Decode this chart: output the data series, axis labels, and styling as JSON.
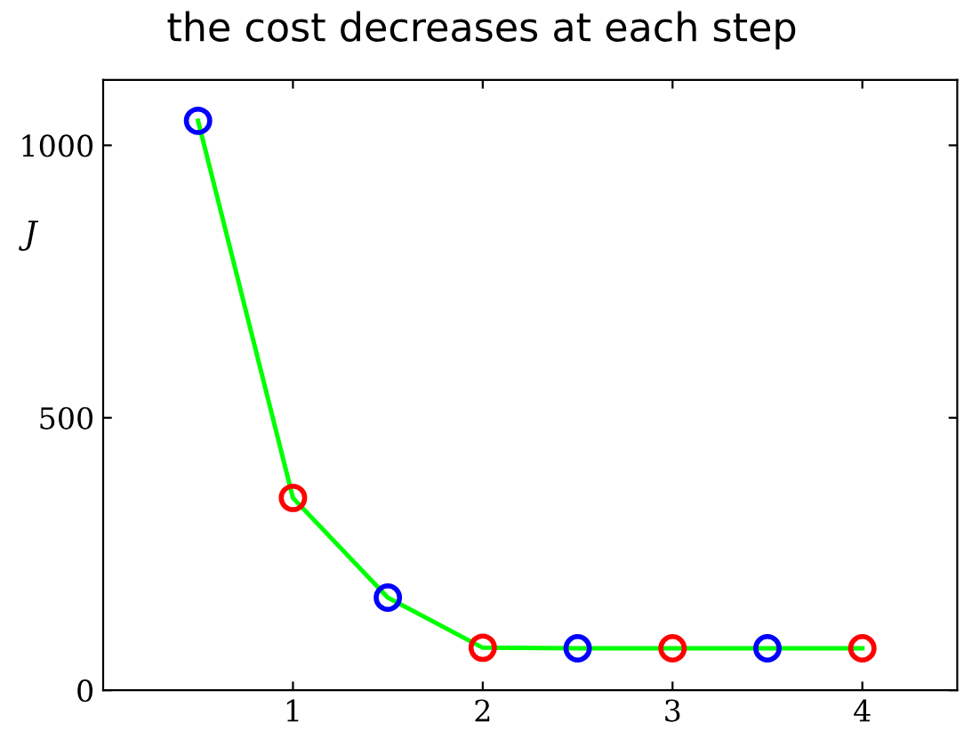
{
  "chart_data": {
    "type": "line",
    "title": "the cost decreases at each step",
    "ylabel": "J",
    "series": [
      {
        "color": "#00ff00",
        "x": [
          0.5,
          1,
          1.5,
          2,
          2.5,
          3,
          3.5,
          4
        ],
        "values": [
          1045,
          353,
          170,
          78,
          77,
          77,
          77,
          77
        ]
      },
      {
        "type": "scatter",
        "color": "#0000ff",
        "x": [
          0.5,
          1.5,
          2.5,
          3.5
        ],
        "values": [
          1045,
          170,
          77,
          77
        ],
        "marker": "circle"
      },
      {
        "type": "scatter",
        "color": "#ff0000",
        "x": [
          1,
          2,
          3,
          4
        ],
        "values": [
          353,
          78,
          77,
          77
        ],
        "marker": "circle"
      }
    ],
    "xlim": [
      0,
      4.5
    ],
    "xticks": [
      1,
      2,
      3,
      4
    ],
    "ylim": [
      0,
      1120
    ],
    "yticks": [
      0,
      500,
      1000
    ]
  }
}
